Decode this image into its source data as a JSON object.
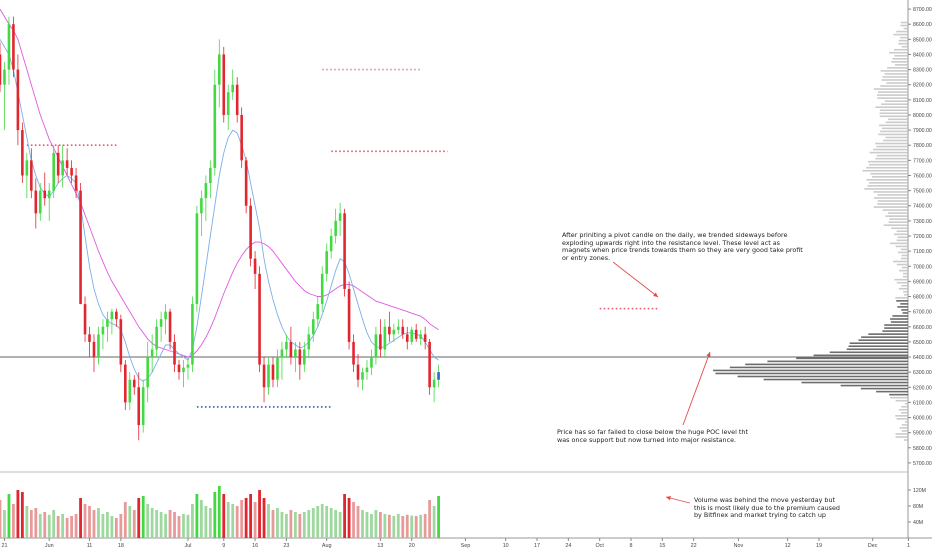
{
  "chart_data": {
    "type": "candlestick",
    "title": "",
    "xlabel": "",
    "ylabel": "",
    "price_axis": {
      "ylim": [
        5640,
        8760
      ],
      "ticks": [
        5700,
        5800,
        5900,
        6000,
        6100,
        6200,
        6300,
        6400,
        6500,
        6600,
        6700,
        6800,
        6900,
        7000,
        7100,
        7200,
        7300,
        7400,
        7500,
        7600,
        7700,
        7800,
        7900,
        8000,
        8100,
        8200,
        8300,
        8400,
        8500,
        8600,
        8700
      ],
      "tick_labels": [
        "5700.00",
        "5800.00",
        "5900.00",
        "6000.00",
        "6100.00",
        "6200.00",
        "6300.00",
        "6400.00",
        "6500.00",
        "6600.00",
        "6700.00",
        "6800.00",
        "6900.00",
        "7000.00",
        "7100.00",
        "7200.00",
        "7300.00",
        "7400.00",
        "7500.00",
        "7600.00",
        "7700.00",
        "7800.00",
        "7900.00",
        "8000.00",
        "8100.00",
        "8200.00",
        "8300.00",
        "8400.00",
        "8500.00",
        "8600.00",
        "8700.00"
      ]
    },
    "volume_axis": {
      "ylim": [
        0,
        150
      ],
      "unit": "M",
      "ticks": [
        40,
        80,
        120
      ],
      "tick_labels": [
        "40M",
        "80M",
        "120M"
      ]
    },
    "x_axis": {
      "start_date": "2018-05-20",
      "end_date": "2018-12-09",
      "ticks": [
        {
          "day": 1,
          "label": "21"
        },
        {
          "day": 11,
          "label": "Jun"
        },
        {
          "day": 20,
          "label": "11"
        },
        {
          "day": 27,
          "label": "18"
        },
        {
          "day": 42,
          "label": "Jul"
        },
        {
          "day": 50,
          "label": "9"
        },
        {
          "day": 57,
          "label": "16"
        },
        {
          "day": 64,
          "label": "23"
        },
        {
          "day": 73,
          "label": "Aug"
        },
        {
          "day": 85,
          "label": "13"
        },
        {
          "day": 92,
          "label": "20"
        },
        {
          "day": 104,
          "label": "Sep"
        },
        {
          "day": 113,
          "label": "10"
        },
        {
          "day": 120,
          "label": "17"
        },
        {
          "day": 127,
          "label": "24"
        },
        {
          "day": 134,
          "label": "Oct"
        },
        {
          "day": 141,
          "label": "8"
        },
        {
          "day": 148,
          "label": "15"
        },
        {
          "day": 155,
          "label": "22"
        },
        {
          "day": 165,
          "label": "Nov"
        },
        {
          "day": 176,
          "label": "12"
        },
        {
          "day": 183,
          "label": "19"
        },
        {
          "day": 195,
          "label": "Dec"
        },
        {
          "day": 203,
          "label": "1"
        }
      ]
    },
    "candles": [
      [
        8400,
        8480,
        8150,
        8200
      ],
      [
        8200,
        8350,
        7900,
        8300
      ],
      [
        8300,
        8650,
        8200,
        8600
      ],
      [
        8600,
        8650,
        8250,
        8300
      ],
      [
        8300,
        8400,
        7800,
        7900
      ],
      [
        7900,
        7950,
        7550,
        7600
      ],
      [
        7600,
        7750,
        7450,
        7700
      ],
      [
        7700,
        7780,
        7450,
        7500
      ],
      [
        7500,
        7580,
        7250,
        7350
      ],
      [
        7350,
        7550,
        7300,
        7500
      ],
      [
        7500,
        7620,
        7400,
        7450
      ],
      [
        7450,
        7550,
        7300,
        7500
      ],
      [
        7500,
        7800,
        7450,
        7750
      ],
      [
        7750,
        7800,
        7550,
        7600
      ],
      [
        7600,
        7800,
        7520,
        7700
      ],
      [
        7700,
        7780,
        7600,
        7650
      ],
      [
        7650,
        7700,
        7550,
        7600
      ],
      [
        7600,
        7650,
        7450,
        7500
      ],
      [
        7500,
        7550,
        6750,
        6750
      ],
      [
        6750,
        6800,
        6500,
        6550
      ],
      [
        6550,
        6600,
        6400,
        6500
      ],
      [
        6500,
        6550,
        6300,
        6400
      ],
      [
        6400,
        6600,
        6350,
        6550
      ],
      [
        6550,
        6650,
        6450,
        6600
      ],
      [
        6600,
        6700,
        6500,
        6650
      ],
      [
        6650,
        6720,
        6550,
        6700
      ],
      [
        6700,
        6720,
        6600,
        6650
      ],
      [
        6650,
        6680,
        6300,
        6350
      ],
      [
        6350,
        6380,
        6050,
        6100
      ],
      [
        6100,
        6300,
        6050,
        6250
      ],
      [
        6250,
        6280,
        6150,
        6200
      ],
      [
        6200,
        6300,
        5850,
        5950
      ],
      [
        5950,
        6250,
        5900,
        6200
      ],
      [
        6200,
        6500,
        6100,
        6400
      ],
      [
        6400,
        6550,
        6300,
        6450
      ],
      [
        6450,
        6650,
        6400,
        6600
      ],
      [
        6600,
        6700,
        6500,
        6650
      ],
      [
        6650,
        6750,
        6550,
        6700
      ],
      [
        6700,
        6720,
        6450,
        6500
      ],
      [
        6500,
        6550,
        6300,
        6350
      ],
      [
        6350,
        6380,
        6250,
        6300
      ],
      [
        6300,
        6380,
        6200,
        6330
      ],
      [
        6330,
        6400,
        6250,
        6350
      ],
      [
        6350,
        6800,
        6300,
        6750
      ],
      [
        6750,
        7400,
        6700,
        7350
      ],
      [
        7350,
        7500,
        7200,
        7450
      ],
      [
        7450,
        7600,
        7300,
        7550
      ],
      [
        7550,
        7700,
        7450,
        7650
      ],
      [
        7650,
        8300,
        7600,
        8200
      ],
      [
        8200,
        8500,
        8050,
        8400
      ],
      [
        8400,
        8450,
        7950,
        8000
      ],
      [
        8000,
        8200,
        7900,
        8150
      ],
      [
        8150,
        8300,
        8100,
        8200
      ],
      [
        8200,
        8250,
        7950,
        8000
      ],
      [
        8000,
        8050,
        7650,
        7700
      ],
      [
        7700,
        7720,
        7350,
        7400
      ],
      [
        7400,
        7450,
        7000,
        7050
      ],
      [
        7050,
        7100,
        6850,
        6950
      ],
      [
        6950,
        7000,
        6300,
        6350
      ],
      [
        6350,
        6400,
        6100,
        6200
      ],
      [
        6200,
        6400,
        6150,
        6350
      ],
      [
        6350,
        6400,
        6200,
        6250
      ],
      [
        6250,
        6450,
        6200,
        6400
      ],
      [
        6400,
        6500,
        6250,
        6450
      ],
      [
        6450,
        6550,
        6400,
        6500
      ],
      [
        6500,
        6600,
        6350,
        6400
      ],
      [
        6400,
        6500,
        6300,
        6450
      ],
      [
        6450,
        6500,
        6250,
        6350
      ],
      [
        6350,
        6500,
        6300,
        6450
      ],
      [
        6450,
        6600,
        6400,
        6550
      ],
      [
        6550,
        6700,
        6500,
        6650
      ],
      [
        6650,
        6800,
        6600,
        6750
      ],
      [
        6750,
        7000,
        6700,
        6950
      ],
      [
        6950,
        7150,
        6900,
        7100
      ],
      [
        7100,
        7250,
        7050,
        7200
      ],
      [
        7200,
        7380,
        7150,
        7300
      ],
      [
        7300,
        7420,
        7200,
        7350
      ],
      [
        7350,
        7380,
        6800,
        6850
      ],
      [
        6850,
        6900,
        6450,
        6500
      ],
      [
        6500,
        6550,
        6300,
        6350
      ],
      [
        6350,
        6420,
        6200,
        6250
      ],
      [
        6250,
        6330,
        6180,
        6300
      ],
      [
        6300,
        6380,
        6250,
        6330
      ],
      [
        6330,
        6450,
        6280,
        6400
      ],
      [
        6400,
        6600,
        6350,
        6550
      ],
      [
        6550,
        6650,
        6400,
        6450
      ],
      [
        6450,
        6650,
        6400,
        6600
      ],
      [
        6600,
        6700,
        6500,
        6550
      ],
      [
        6550,
        6620,
        6500,
        6580
      ],
      [
        6580,
        6650,
        6550,
        6600
      ],
      [
        6600,
        6650,
        6520,
        6550
      ],
      [
        6550,
        6600,
        6450,
        6500
      ],
      [
        6500,
        6600,
        6480,
        6580
      ],
      [
        6580,
        6620,
        6500,
        6520
      ],
      [
        6520,
        6580,
        6480,
        6550
      ],
      [
        6550,
        6600,
        6450,
        6500
      ],
      [
        6500,
        6520,
        6150,
        6200
      ],
      [
        6200,
        6300,
        6100,
        6250
      ],
      [
        6250,
        6350,
        6200,
        6300
      ]
    ],
    "volumes": [
      95,
      70,
      110,
      85,
      120,
      115,
      80,
      70,
      75,
      60,
      65,
      58,
      70,
      55,
      60,
      50,
      55,
      60,
      100,
      85,
      80,
      70,
      75,
      60,
      65,
      55,
      50,
      60,
      90,
      80,
      70,
      100,
      105,
      85,
      75,
      70,
      65,
      60,
      70,
      65,
      55,
      60,
      58,
      85,
      110,
      95,
      80,
      75,
      115,
      130,
      110,
      90,
      85,
      80,
      95,
      100,
      110,
      90,
      120,
      100,
      85,
      70,
      75,
      65,
      60,
      70,
      65,
      60,
      65,
      70,
      75,
      80,
      85,
      80,
      75,
      70,
      65,
      110,
      100,
      90,
      80,
      70,
      65,
      60,
      70,
      65,
      60,
      58,
      55,
      60,
      55,
      58,
      56,
      55,
      58,
      60,
      95,
      80,
      105
    ],
    "series": [
      {
        "name": "",
        "color": "#e05ae0",
        "values": [
          8700,
          8650,
          8600,
          8560,
          8500,
          8400,
          8300,
          8200,
          8100,
          8000,
          7920,
          7840,
          7780,
          7720,
          7660,
          7600,
          7540,
          7480,
          7420,
          7340,
          7260,
          7180,
          7100,
          7030,
          6960,
          6900,
          6850,
          6800,
          6750,
          6700,
          6650,
          6600,
          6560,
          6520,
          6490,
          6470,
          6460,
          6450,
          6440,
          6430,
          6420,
          6410,
          6400,
          6410,
          6440,
          6480,
          6530,
          6590,
          6660,
          6740,
          6820,
          6890,
          6960,
          7020,
          7070,
          7110,
          7140,
          7160,
          7160,
          7150,
          7130,
          7100,
          7060,
          7020,
          6980,
          6940,
          6900,
          6870,
          6840,
          6820,
          6810,
          6800,
          6800,
          6810,
          6830,
          6850,
          6870,
          6880,
          6880,
          6870,
          6850,
          6830,
          6810,
          6790,
          6770,
          6760,
          6750,
          6740,
          6730,
          6720,
          6710,
          6700,
          6690,
          6680,
          6670,
          6650,
          6620,
          6600,
          6580
        ]
      },
      {
        "name": "",
        "color": "#7ab0e8",
        "values": [
          8500,
          8450,
          8400,
          8300,
          8150,
          8000,
          7850,
          7700,
          7600,
          7520,
          7480,
          7460,
          7500,
          7550,
          7580,
          7600,
          7580,
          7550,
          7400,
          7200,
          7000,
          6850,
          6750,
          6680,
          6640,
          6620,
          6610,
          6580,
          6500,
          6400,
          6320,
          6260,
          6240,
          6260,
          6300,
          6360,
          6420,
          6480,
          6480,
          6450,
          6420,
          6400,
          6380,
          6450,
          6600,
          6800,
          7000,
          7200,
          7400,
          7600,
          7750,
          7850,
          7900,
          7880,
          7800,
          7700,
          7550,
          7400,
          7250,
          7050,
          6900,
          6780,
          6680,
          6600,
          6540,
          6500,
          6480,
          6460,
          6470,
          6500,
          6540,
          6600,
          6680,
          6770,
          6870,
          6970,
          7050,
          7030,
          6950,
          6850,
          6750,
          6650,
          6560,
          6500,
          6470,
          6460,
          6470,
          6490,
          6510,
          6530,
          6550,
          6560,
          6560,
          6550,
          6540,
          6500,
          6450,
          6400,
          6380
        ]
      }
    ],
    "levels": [
      {
        "price": 7800,
        "start_day": 6,
        "end_day": 26,
        "color": "#e05a6a"
      },
      {
        "price": 8300,
        "start_day": 72,
        "end_day": 94,
        "color": "#e8909e"
      },
      {
        "price": 7760,
        "start_day": 74,
        "end_day": 100,
        "color": "#e05a6a"
      },
      {
        "price": 6070,
        "start_day": 44,
        "end_day": 74,
        "color": "#3a5ac8"
      },
      {
        "price": 6720,
        "start_day": 134,
        "end_day": 147,
        "color": "#e05a6a"
      }
    ],
    "poc_line": 6400,
    "annotations": [
      "After priniting a pivot candle on the daily, we trended sideways before\nexploding upwards right into the resistance level. These level act as\nmagnets when price trends towards them so they are very good take profit\nor entry zones.",
      "Price has so far failed to close below the huge POC level tht\nwas once support but now turned into major resistance.",
      "Volume was behind the move yesterday but\nthis is most likely due to the premium caused\nby Bitfinex and market trying to catch up"
    ],
    "colors": {
      "up": "#43d943",
      "down": "#e2262f",
      "volume_up": "#9fd89f",
      "volume_down": "#e89a9a",
      "profile": "#6e6e6e"
    }
  }
}
